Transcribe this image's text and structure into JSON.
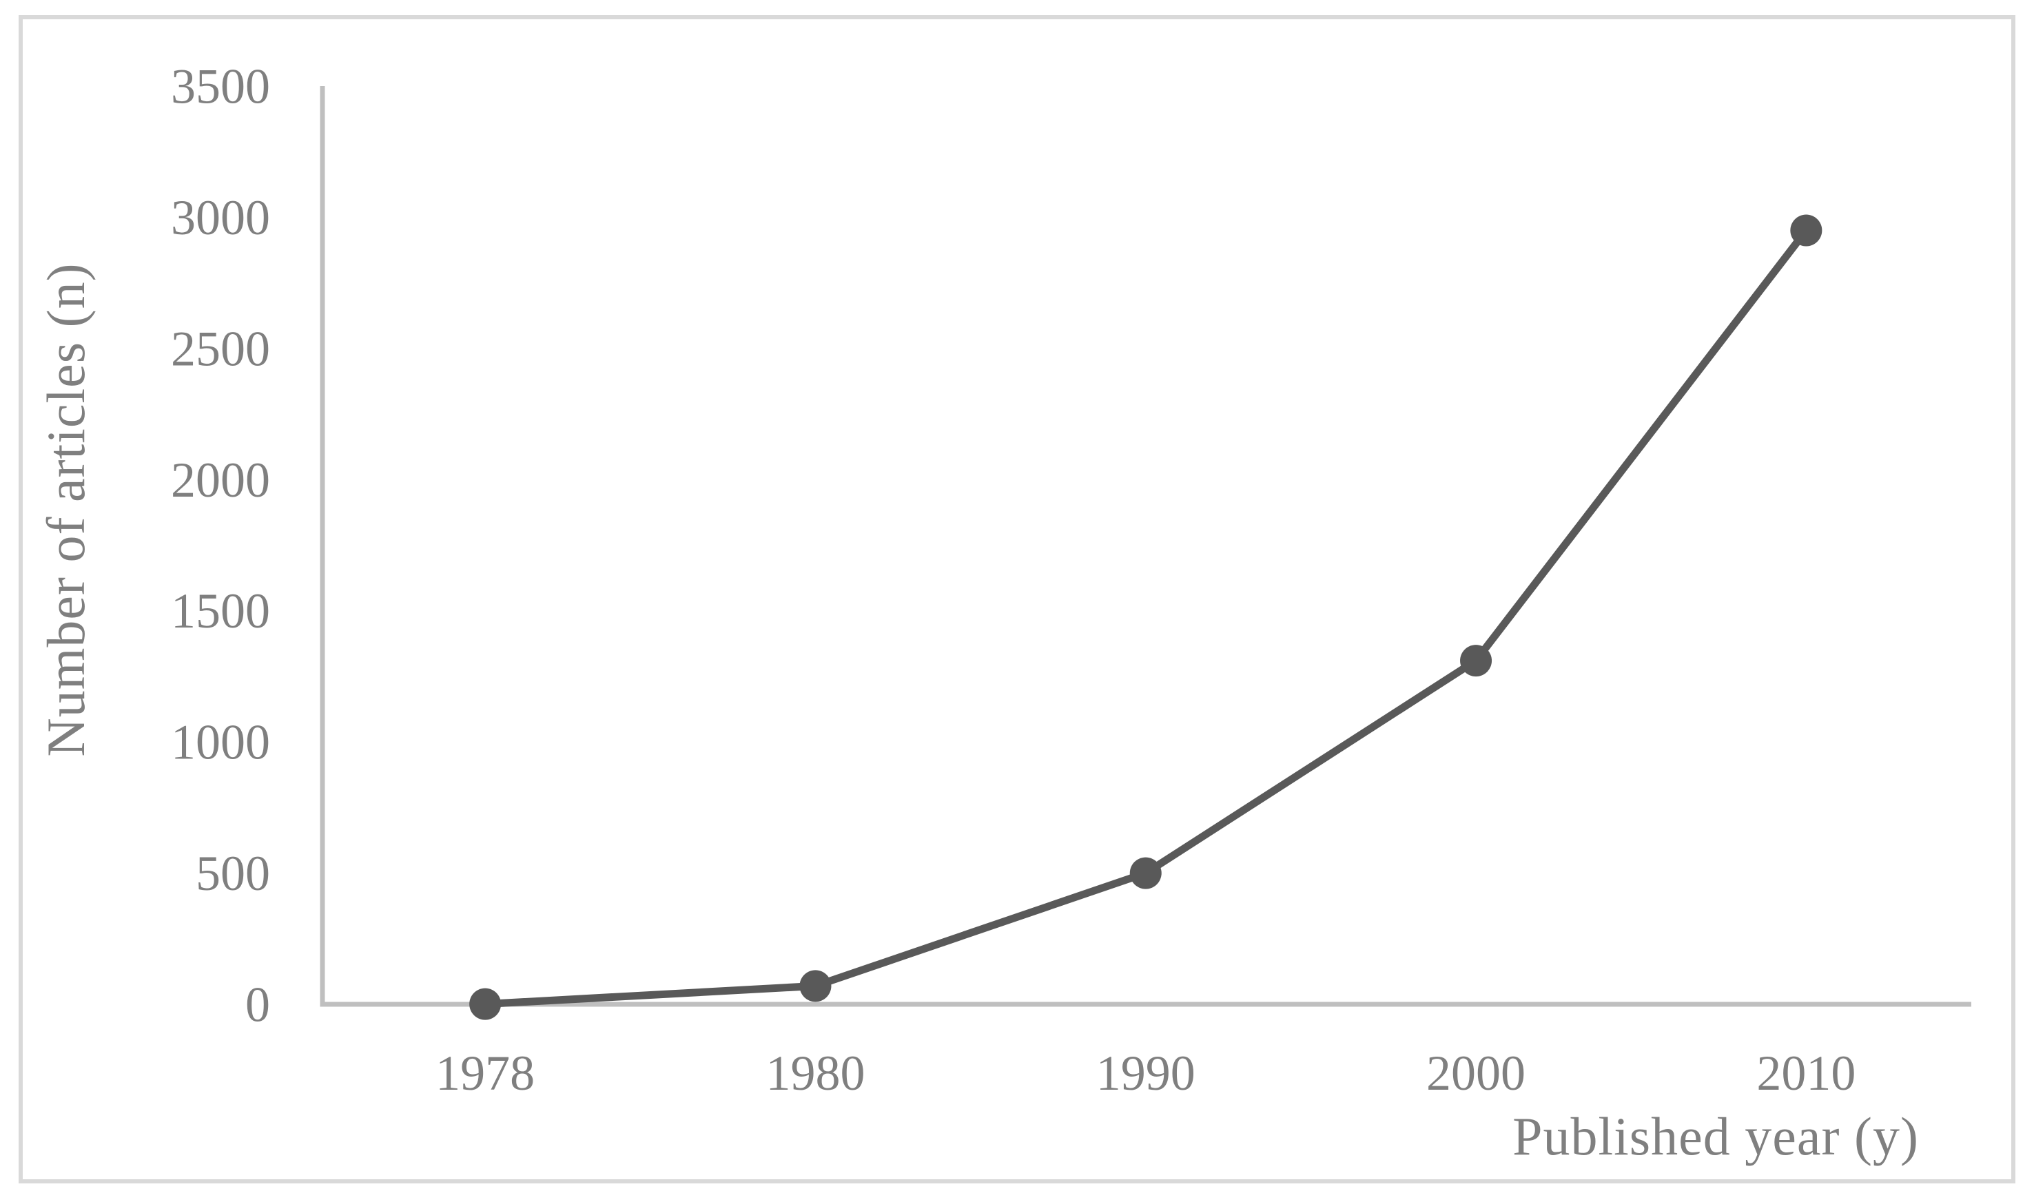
{
  "figure": {
    "background": "#ffffff",
    "border_color": "#d9d9d9"
  },
  "chart_data": {
    "type": "line",
    "title": "",
    "xlabel": "Published year (y)",
    "ylabel": "Number of articles (n)",
    "categories": [
      "1978",
      "1980",
      "1990",
      "2000",
      "2010"
    ],
    "values": [
      1,
      70,
      500,
      1310,
      2950
    ],
    "series": [
      {
        "name": "Number of articles",
        "values": [
          1,
          70,
          500,
          1310,
          2950
        ]
      }
    ],
    "ylim": [
      0,
      3500
    ],
    "ytick_step": 500,
    "ytick_labels": [
      "3500",
      "3000",
      "2500",
      "2000",
      "1500",
      "1000",
      "500",
      "0"
    ],
    "grid": false,
    "legend": "none",
    "marker_shape": "circle",
    "line_color": "#595959",
    "marker_color": "#595959",
    "axis_line_color": "#bfbfbf",
    "text_color": "#7f7f7f",
    "border_color": "#d9d9d9"
  }
}
